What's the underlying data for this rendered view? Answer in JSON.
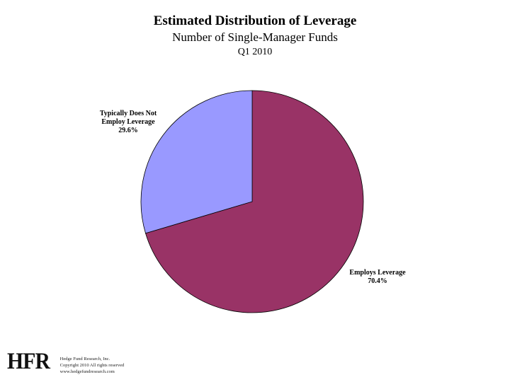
{
  "chart_data": {
    "type": "pie",
    "title": "Estimated Distribution of Leverage",
    "subtitle": "Number of Single-Manager Funds",
    "period": "Q1 2010",
    "slices": [
      {
        "label_lines": [
          "Employs Leverage",
          "70.4%"
        ],
        "value": 70.4,
        "color": "#993366"
      },
      {
        "label_lines": [
          "Typically Does Not",
          "Employ Leverage",
          "29.6%"
        ],
        "value": 29.6,
        "color": "#9999FF"
      }
    ]
  },
  "footer": {
    "logo_text": "HFR",
    "credit_lines": [
      "Hedge Fund Research, Inc.",
      "Copyright 2010 All rights reserved",
      "www.hedgefundresearch.com"
    ]
  }
}
